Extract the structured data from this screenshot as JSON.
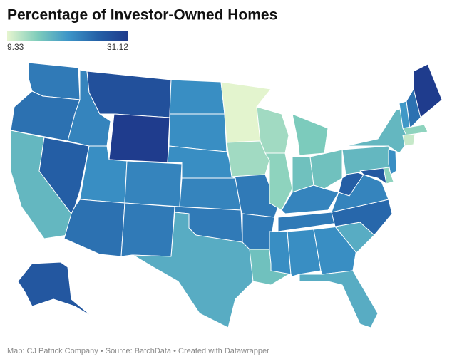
{
  "chart_data": {
    "type": "choropleth",
    "title": "Percentage of Investor-Owned Homes",
    "colorlim": [
      9.33,
      31.12
    ],
    "colors": [
      "#e6f5cf",
      "#7fcdbb",
      "#3d96c8",
      "#2460a7",
      "#1f3b8c"
    ],
    "values": [
      23,
      24,
      17,
      26,
      22,
      28,
      31,
      21,
      22,
      24,
      23,
      21,
      21,
      21,
      22,
      23,
      18,
      9.5,
      13,
      23,
      23,
      16,
      13,
      14,
      15,
      16,
      16,
      22,
      23,
      21,
      21,
      21,
      18,
      18,
      25,
      22,
      26,
      17,
      17,
      31,
      20,
      24,
      14,
      11,
      21,
      14,
      27,
      27
    ],
    "source": "Map: CJ Patrick Company • Source: BatchData • Created with Datawrapper"
  }
}
